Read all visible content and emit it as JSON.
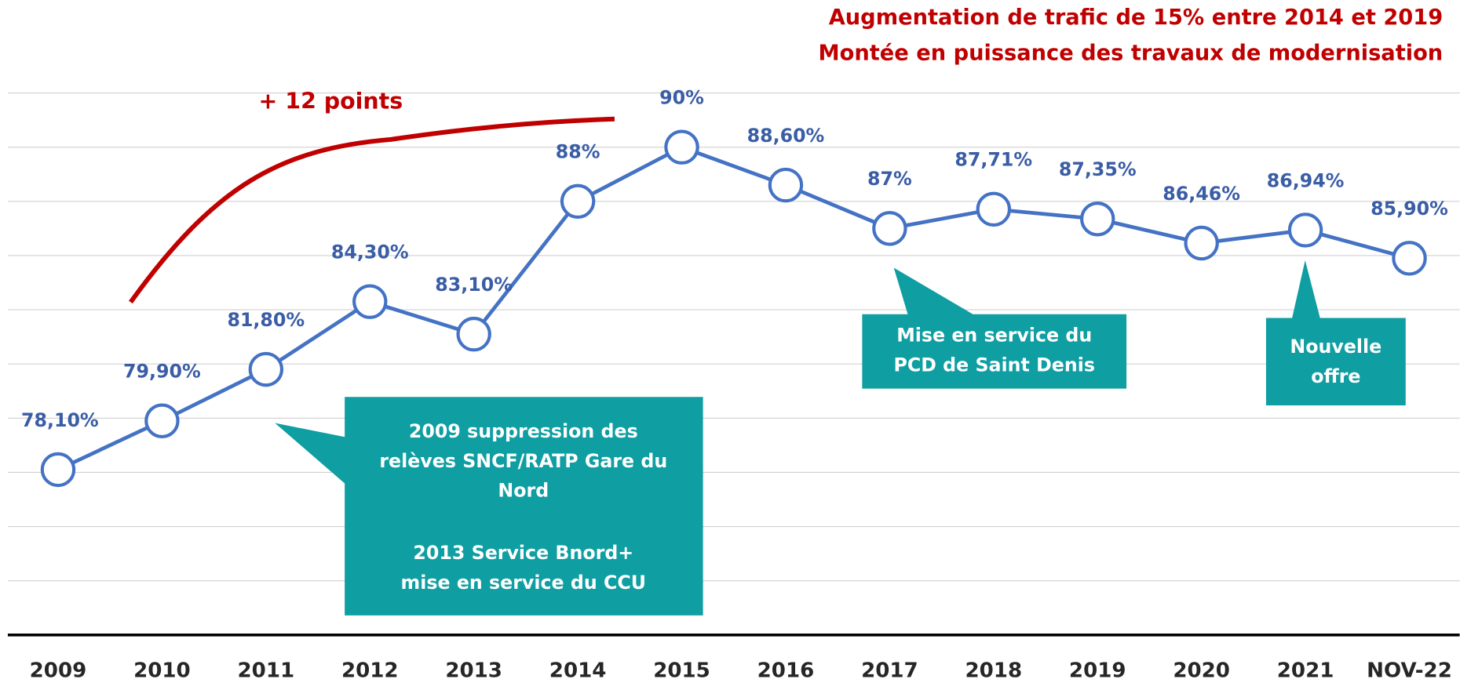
{
  "chart_data": {
    "type": "line",
    "title_lines": [
      "Augmentation de trafic de 15% entre 2014 et 2019",
      "Montée en puissance des travaux de modernisation"
    ],
    "categories": [
      "2009",
      "2010",
      "2011",
      "2012",
      "2013",
      "2014",
      "2015",
      "2016",
      "2017",
      "2018",
      "2019",
      "2020",
      "2021",
      "NOV-22"
    ],
    "series": [
      {
        "color": "#4472c4",
        "values": [
          78.1,
          79.9,
          81.8,
          84.3,
          83.1,
          88,
          90,
          88.6,
          87,
          87.71,
          87.35,
          86.46,
          86.94,
          85.9
        ],
        "value_labels": [
          "78,10%",
          "79,90%",
          "81,80%",
          "84,30%",
          "83,10%",
          "88%",
          "90%",
          "88,60%",
          "87%",
          "87,71%",
          "87,35%",
          "86,46%",
          "86,94%",
          "85,90%"
        ]
      }
    ],
    "ylim": [
      72,
      92
    ],
    "yticks": [
      72,
      74,
      76,
      78,
      80,
      82,
      84,
      86,
      88,
      90,
      92
    ],
    "grid": true,
    "annotations": {
      "trend": "+ 12 points",
      "callout_1": [
        [
          "2009 suppression des",
          "relèves SNCF/RATP Gare du",
          "Nord"
        ],
        [
          "2013 Service Bnord+",
          "mise en service du CCU"
        ]
      ],
      "callout_2": [
        "Mise en service du",
        "PCD de Saint Denis"
      ],
      "callout_3": [
        "Nouvelle",
        "offre"
      ]
    }
  }
}
